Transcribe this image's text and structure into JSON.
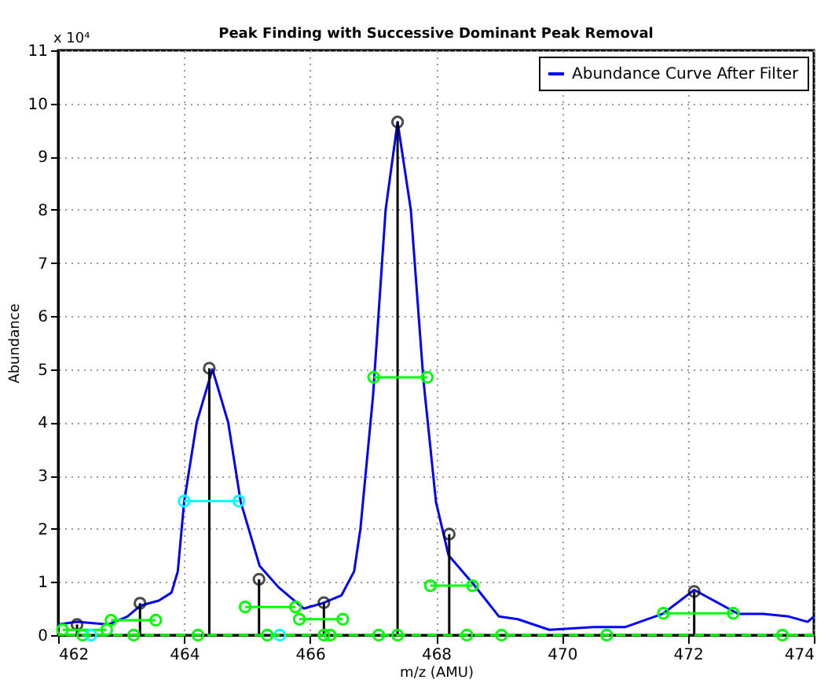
{
  "chart_data": {
    "type": "line",
    "title": "Peak Finding with Successive Dominant Peak Removal",
    "xlabel": "m/z (AMU)",
    "ylabel": "Abundance",
    "annotations": [
      "x 10⁴"
    ],
    "xlim": [
      462,
      474
    ],
    "xticks": [
      462,
      464,
      466,
      468,
      470,
      472,
      474
    ],
    "ylim": [
      0,
      11
    ],
    "yticks": [
      0,
      1,
      2,
      3,
      4,
      5,
      6,
      7,
      8,
      9,
      10,
      11
    ],
    "grid": true,
    "legend": "top right",
    "ref_lines": [
      {
        "axis": "y",
        "value": 0,
        "color": "#00ff00",
        "line_style": "dashed"
      }
    ],
    "series": [
      {
        "name": "Abundance Curve After Filter",
        "color": "#0000ff",
        "marker": "none",
        "x": [
          462.0,
          462.3,
          462.8,
          463.1,
          463.3,
          463.6,
          463.8,
          463.9,
          464.0,
          464.2,
          464.45,
          464.7,
          464.9,
          465.2,
          465.5,
          465.9,
          466.2,
          466.5,
          466.7,
          466.8,
          467.0,
          467.2,
          467.39,
          467.6,
          467.8,
          468.0,
          468.2,
          468.6,
          469.0,
          469.3,
          469.8,
          470.5,
          471.0,
          471.6,
          472.1,
          472.8,
          473.2,
          473.6,
          473.9,
          474.0
        ],
        "values": [
          0.2,
          0.25,
          0.2,
          0.35,
          0.55,
          0.65,
          0.8,
          1.2,
          2.5,
          4.0,
          5.0,
          4.0,
          2.5,
          1.3,
          0.9,
          0.5,
          0.6,
          0.75,
          1.2,
          2.0,
          4.5,
          8.0,
          9.65,
          8.0,
          4.8,
          2.5,
          1.5,
          0.95,
          0.35,
          0.3,
          0.1,
          0.15,
          0.15,
          0.4,
          0.85,
          0.4,
          0.4,
          0.35,
          0.25,
          0.35
        ]
      },
      {
        "color": "#000000",
        "type": "lollipop",
        "marker": "circle",
        "x": [
          462.3,
          463.3,
          464.4,
          465.19,
          466.22,
          467.39,
          468.21,
          472.1
        ],
        "values": [
          0.2,
          0.6,
          5.02,
          1.05,
          0.61,
          9.65,
          1.9,
          0.82
        ]
      },
      {
        "color": "#00ffff",
        "type": "line",
        "marker": "circle",
        "x": [
          464.0,
          464.87
        ],
        "values": [
          2.52,
          2.52
        ]
      },
      {
        "color": "#00ff00",
        "type": "line",
        "marker": "circle",
        "x": [
          462.07,
          462.77
        ],
        "values": [
          0.1,
          0.1
        ]
      },
      {
        "color": "#00ff00",
        "type": "line",
        "marker": "circle",
        "x": [
          462.84,
          463.55
        ],
        "values": [
          0.28,
          0.28
        ]
      },
      {
        "color": "#00ff00",
        "type": "line",
        "marker": "circle",
        "x": [
          464.97,
          465.77
        ],
        "values": [
          0.53,
          0.53
        ]
      },
      {
        "color": "#00ff00",
        "type": "line",
        "marker": "circle",
        "x": [
          465.83,
          466.52
        ],
        "values": [
          0.3,
          0.3
        ]
      },
      {
        "color": "#00ff00",
        "type": "line",
        "marker": "circle",
        "x": [
          467.01,
          467.86
        ],
        "values": [
          4.85,
          4.85
        ]
      },
      {
        "color": "#00ff00",
        "type": "line",
        "marker": "circle",
        "x": [
          467.91,
          468.58
        ],
        "values": [
          0.93,
          0.93
        ]
      },
      {
        "color": "#00ff00",
        "type": "line",
        "marker": "circle",
        "x": [
          471.61,
          472.72
        ],
        "values": [
          0.41,
          0.41
        ]
      },
      {
        "color": "#00ff00",
        "type": "scatter",
        "marker": "circle",
        "x": [
          462.39,
          463.2,
          464.22,
          465.32,
          466.22,
          466.32,
          467.09,
          467.39,
          468.49,
          469.04,
          470.71,
          473.5
        ],
        "values": [
          0,
          0,
          0,
          0,
          0,
          0,
          0,
          0,
          0,
          0,
          0,
          0
        ]
      },
      {
        "color": "#00ffff",
        "type": "scatter",
        "marker": "circle",
        "x": [
          462.52,
          465.52
        ],
        "values": [
          0,
          0
        ]
      }
    ]
  }
}
